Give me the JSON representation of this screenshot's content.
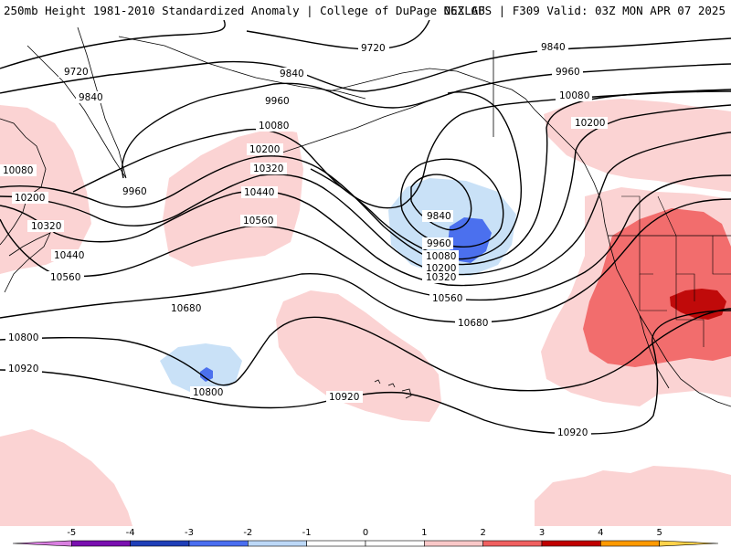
{
  "header": {
    "title_left": "250mb Height 1981-2010 Standardized Anomaly | College of DuPage NEXLAB",
    "title_right": "06Z GFS | F309 Valid: 03Z MON APR 07 2025"
  },
  "contour_labels": {
    "c9720a": "9720",
    "c9720b": "9720",
    "c9840a": "9840",
    "c9840b": "9840",
    "c9840c": "9840",
    "c9840d": "9840",
    "c9960a": "9960",
    "c9960b": "9960",
    "c9960c": "9960",
    "c9960d": "9960",
    "c10080a": "10080",
    "c10080b": "10080",
    "c10080c": "10080",
    "c10080d": "10080",
    "c10200a": "10200",
    "c10200b": "10200",
    "c10200c": "10200",
    "c10200d": "10200",
    "c10320a": "10320",
    "c10320b": "10320",
    "c10320c": "10320",
    "c10440a": "10440",
    "c10440b": "10440",
    "c10560a": "10560",
    "c10560b": "10560",
    "c10560c": "10560",
    "c10680a": "10680",
    "c10680b": "10680",
    "c10800a": "10800",
    "c10800b": "10800",
    "c10920a": "10920",
    "c10920b": "10920",
    "c10920c": "10920"
  },
  "colorbar": {
    "ticks": [
      "-5",
      "-4",
      "-3",
      "-2",
      "-1",
      "0",
      "1",
      "2",
      "3",
      "4",
      "5"
    ],
    "colors": [
      "#d97ee0",
      "#7a0fb0",
      "#1f3fb8",
      "#4a6ef0",
      "#bcd8f7",
      "#ffffff",
      "#ffffff",
      "#f9c8c8",
      "#f06060",
      "#c00000",
      "#ff9a00",
      "#ffd24a"
    ]
  },
  "shading_colors": {
    "weak_positive": "#fbd3d3",
    "moderate_positive": "#f26d6d",
    "strong_positive": "#c00a0a",
    "weak_negative": "#c9e1f7",
    "moderate_negative": "#4b70ee"
  }
}
